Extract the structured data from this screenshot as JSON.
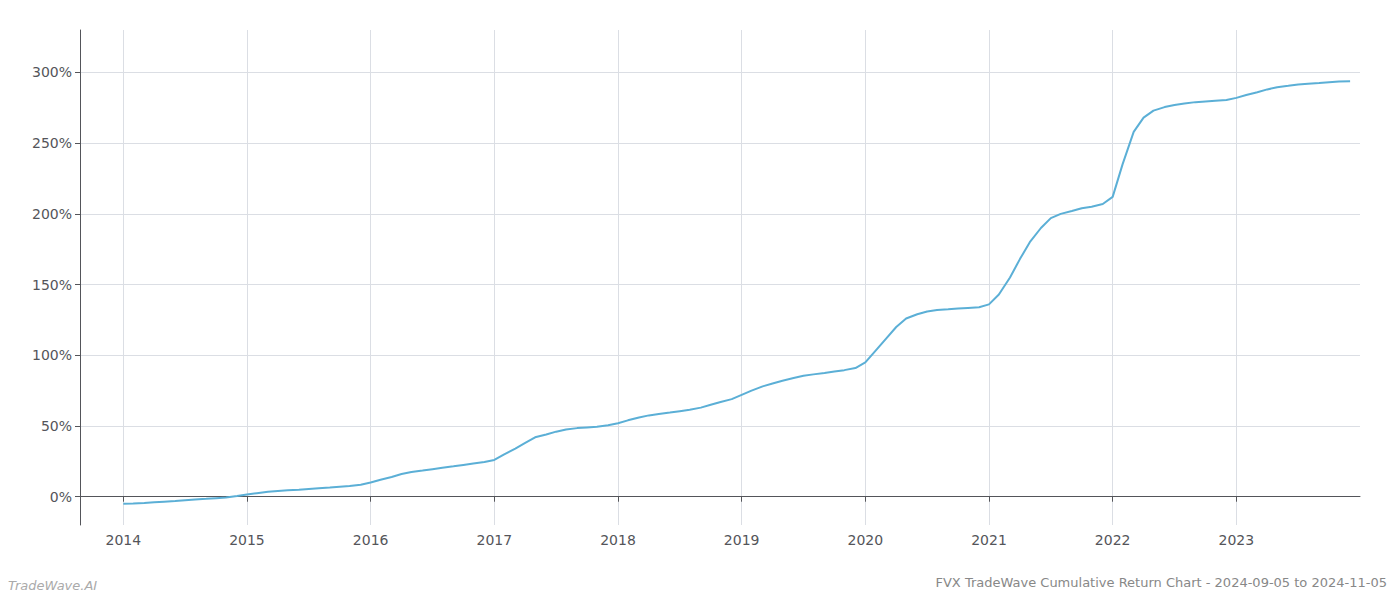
{
  "chart_data": {
    "type": "line",
    "title": "FVX TradeWave Cumulative Return Chart - 2024-09-05 to 2024-11-05",
    "annotations": [
      "TradeWave.AI"
    ],
    "color": "#5bafd6",
    "grid": true,
    "x": [
      2014.0,
      2014.08,
      2014.17,
      2014.25,
      2014.33,
      2014.42,
      2014.5,
      2014.58,
      2014.67,
      2014.75,
      2014.83,
      2014.92,
      2015.0,
      2015.08,
      2015.17,
      2015.25,
      2015.33,
      2015.42,
      2015.5,
      2015.58,
      2015.67,
      2015.75,
      2015.83,
      2015.92,
      2016.0,
      2016.08,
      2016.17,
      2016.25,
      2016.33,
      2016.42,
      2016.5,
      2016.58,
      2016.67,
      2016.75,
      2016.83,
      2016.92,
      2017.0,
      2017.08,
      2017.17,
      2017.25,
      2017.33,
      2017.42,
      2017.5,
      2017.58,
      2017.67,
      2017.75,
      2017.83,
      2017.92,
      2018.0,
      2018.08,
      2018.17,
      2018.25,
      2018.33,
      2018.42,
      2018.5,
      2018.58,
      2018.67,
      2018.75,
      2018.83,
      2018.92,
      2019.0,
      2019.08,
      2019.17,
      2019.25,
      2019.33,
      2019.42,
      2019.5,
      2019.58,
      2019.67,
      2019.75,
      2019.83,
      2019.92,
      2020.0,
      2020.08,
      2020.17,
      2020.25,
      2020.33,
      2020.42,
      2020.5,
      2020.58,
      2020.67,
      2020.75,
      2020.83,
      2020.92,
      2021.0,
      2021.08,
      2021.17,
      2021.25,
      2021.33,
      2021.42,
      2021.5,
      2021.58,
      2021.67,
      2021.75,
      2021.83,
      2021.92,
      2022.0,
      2022.08,
      2022.17,
      2022.25,
      2022.33,
      2022.42,
      2022.5,
      2022.58,
      2022.67,
      2022.75,
      2022.83,
      2022.92,
      2023.0,
      2023.08,
      2023.17,
      2023.25,
      2023.33,
      2023.42,
      2023.5,
      2023.58,
      2023.67,
      2023.75,
      2023.83,
      2023.92
    ],
    "values": [
      -5.0,
      -4.8,
      -4.5,
      -4.0,
      -3.5,
      -3.0,
      -2.5,
      -2.0,
      -1.5,
      -1.0,
      -0.5,
      0.5,
      1.5,
      2.5,
      3.5,
      4.0,
      4.5,
      5.0,
      5.5,
      6.0,
      6.5,
      7.0,
      7.5,
      8.5,
      10.0,
      12.0,
      14.0,
      16.0,
      17.5,
      18.5,
      19.5,
      20.5,
      21.5,
      22.5,
      23.5,
      24.5,
      26.0,
      30.0,
      34.0,
      38.0,
      42.0,
      44.0,
      46.0,
      47.5,
      48.5,
      49.0,
      49.5,
      50.5,
      52.0,
      54.0,
      56.0,
      57.5,
      58.5,
      59.5,
      60.5,
      61.5,
      63.0,
      65.0,
      67.0,
      69.0,
      72.0,
      75.0,
      78.0,
      80.0,
      82.0,
      84.0,
      85.5,
      86.5,
      87.5,
      88.5,
      89.5,
      91.0,
      95.0,
      103.0,
      112.0,
      120.0,
      126.0,
      129.0,
      131.0,
      132.0,
      132.5,
      133.0,
      133.5,
      134.0,
      136.0,
      143.0,
      155.0,
      168.0,
      180.0,
      190.0,
      197.0,
      200.0,
      202.0,
      204.0,
      205.0,
      207.0,
      212.0,
      235.0,
      258.0,
      268.0,
      273.0,
      275.5,
      277.0,
      278.0,
      279.0,
      279.5,
      280.0,
      280.5,
      282.0,
      284.0,
      286.0,
      288.0,
      289.5,
      290.5,
      291.5,
      292.0,
      292.5,
      293.0,
      293.5,
      293.8
    ],
    "xlim": [
      2013.65,
      2024.0
    ],
    "xticks": [
      2014,
      2015,
      2016,
      2017,
      2018,
      2019,
      2020,
      2021,
      2022,
      2023
    ],
    "ylim": [
      -20,
      330
    ],
    "yticks": [
      {
        "value": 0,
        "label": "0%"
      },
      {
        "value": 50,
        "label": "50%"
      },
      {
        "value": 100,
        "label": "100%"
      },
      {
        "value": 150,
        "label": "150%"
      },
      {
        "value": 200,
        "label": "200%"
      },
      {
        "value": 250,
        "label": "250%"
      },
      {
        "value": 300,
        "label": "300%"
      }
    ]
  }
}
